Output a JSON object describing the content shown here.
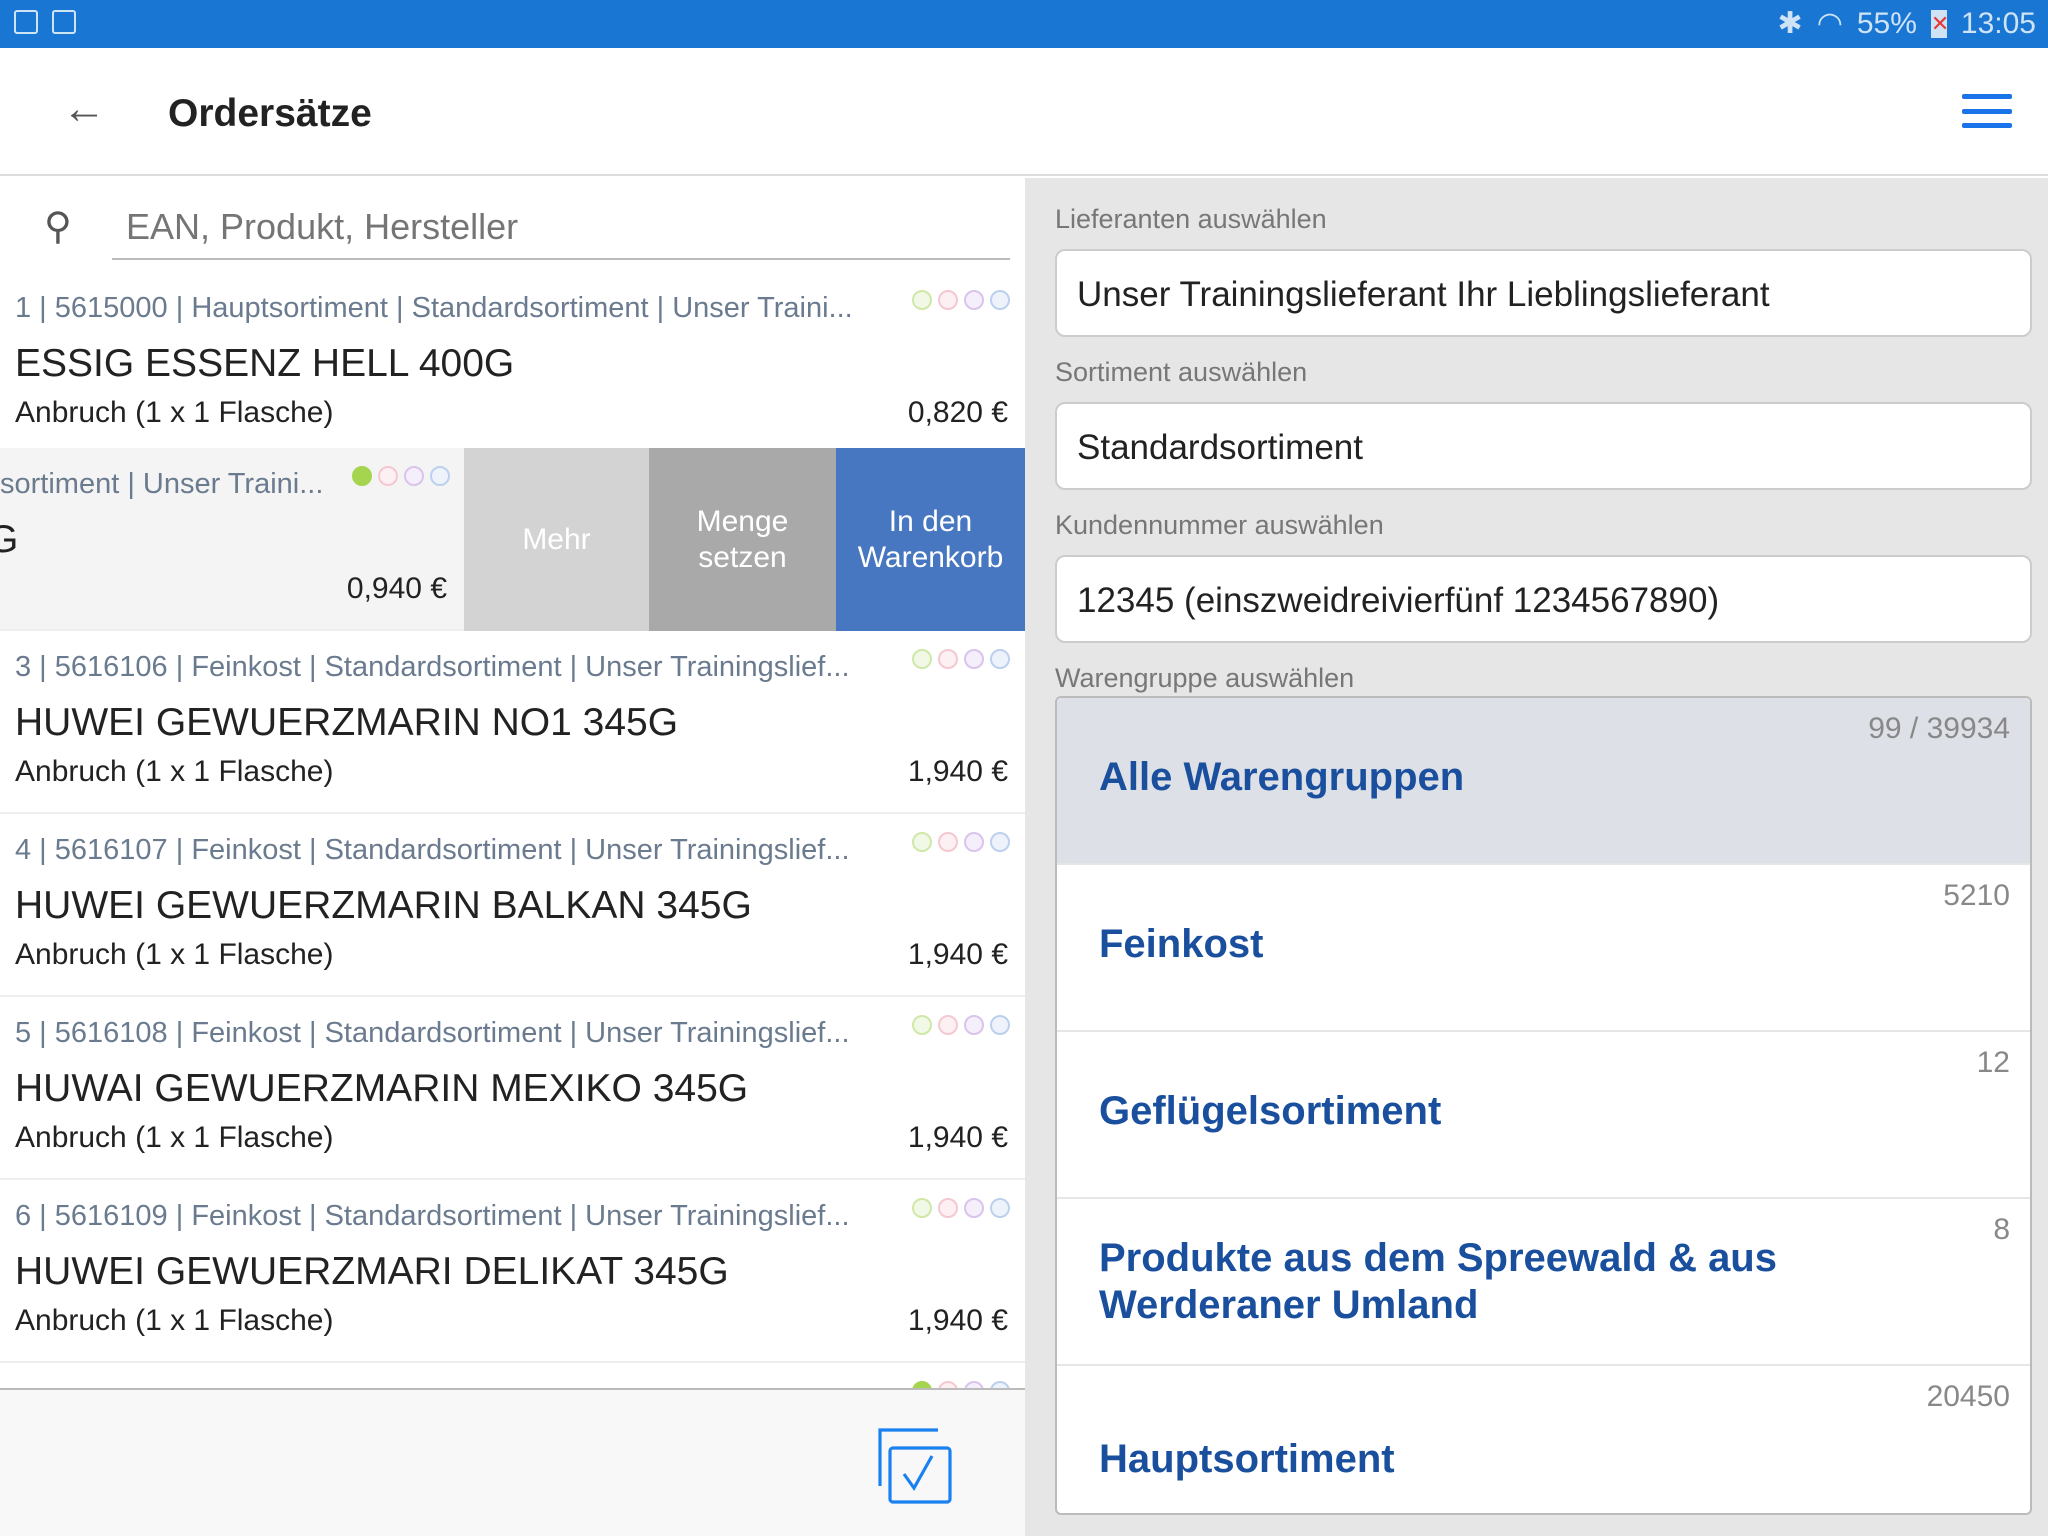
{
  "status_bar": {
    "battery": "55%",
    "time": "13:05"
  },
  "app_bar": {
    "title": "Ordersätze"
  },
  "search": {
    "placeholder": "EAN, Produkt, Hersteller"
  },
  "items": [
    {
      "meta": "1 | 5615000 | Hauptsortiment | Standardsortiment | Unser Traini...",
      "name": "ESSIG ESSENZ HELL 400G",
      "sub": "Anbruch (1 x 1 Flasche)",
      "price": "0,820 €"
    },
    {
      "meta": "sortiment | Unser Traini...",
      "name": "G",
      "price": "0,940 €"
    },
    {
      "meta": "3 | 5616106 | Feinkost | Standardsortiment | Unser Trainingslief...",
      "name": "HUWEI GEWUERZMARIN NO1 345G",
      "sub": "Anbruch (1 x 1 Flasche)",
      "price": "1,940 €"
    },
    {
      "meta": "4 | 5616107 | Feinkost | Standardsortiment | Unser Trainingslief...",
      "name": "HUWEI GEWUERZMARIN BALKAN 345G",
      "sub": "Anbruch (1 x 1 Flasche)",
      "price": "1,940 €"
    },
    {
      "meta": "5 | 5616108 | Feinkost | Standardsortiment | Unser Trainingslief...",
      "name": "HUWAI GEWUERZMARIN MEXIKO 345G",
      "sub": "Anbruch (1 x 1 Flasche)",
      "price": "1,940 €"
    },
    {
      "meta": "6 | 5616109 | Feinkost | Standardsortiment | Unser Trainingslief...",
      "name": "HUWEI GEWUERZMARI DELIKAT 345G",
      "sub": "Anbruch (1 x 1 Flasche)",
      "price": "1,940 €"
    }
  ],
  "swipe_actions": {
    "more": "Mehr",
    "set_qty": "Menge setzen",
    "add_cart": "In den Warenkorb",
    "colors": {
      "more": "#d3d3d3",
      "set_qty": "#a9a9a9",
      "add_cart": "#4777c0"
    }
  },
  "filters": {
    "supplier_label": "Lieferanten auswählen",
    "supplier": "Unser Trainingslieferant Ihr Lieblingslieferant",
    "assortment_label": "Sortiment auswählen",
    "assortment": "Standardsortiment",
    "customer_label": "Kundennummer auswählen",
    "customer": "12345 (einszweidreivierfünf 1234567890)",
    "group_label": "Warengruppe auswählen"
  },
  "groups": [
    {
      "name": "Alle Warengruppen",
      "count": "99 / 39934",
      "selected": true
    },
    {
      "name": "Feinkost",
      "count": "5210"
    },
    {
      "name": "Geflügelsortiment",
      "count": "12"
    },
    {
      "name": "Produkte aus dem Spreewald & aus Werderaner Umland",
      "count": "8"
    },
    {
      "name": "Hauptsortiment",
      "count": "20450"
    }
  ],
  "colors": {
    "status_bar": "#1976d2",
    "accent": "#1a73e8",
    "group_text": "#1a4f9e"
  }
}
